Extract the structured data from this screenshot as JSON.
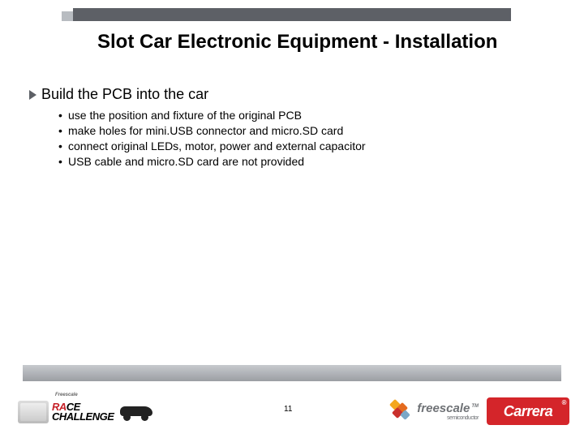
{
  "title": "Slot Car Electronic Equipment - Installation",
  "section_heading": "Build the PCB into the car",
  "bullets": [
    "use the position and fixture of the original PCB",
    "make holes for mini.USB connector and micro.SD card",
    "connect original LEDs, motor, power and external capacitor",
    "USB cable and micro.SD card are not provided"
  ],
  "page_number": "11",
  "logos": {
    "left": {
      "small_text": "Freescale",
      "line1a": "RA",
      "line1b": "CE",
      "line2": "CHALLENGE"
    },
    "freescale": {
      "name": "freescale",
      "sub": "semiconductor",
      "tm": "TM"
    },
    "carrera": {
      "name": "Carrera"
    }
  },
  "colors": {
    "band": "#5d6066",
    "carrera_bg": "#d4252a",
    "race_red": "#c62128",
    "freescale_text": "#6f7276"
  }
}
